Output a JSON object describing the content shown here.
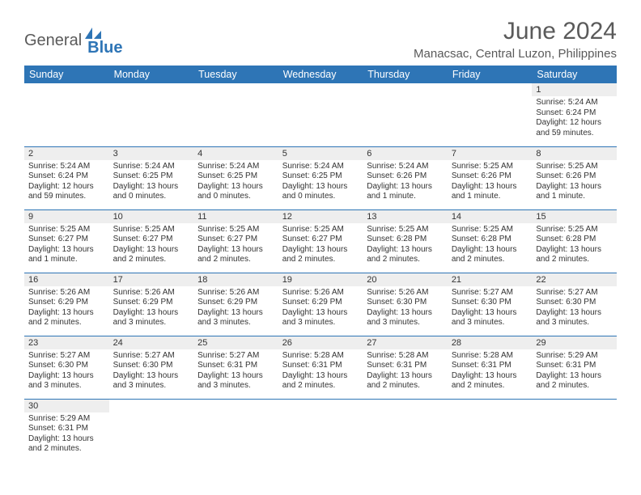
{
  "brand": {
    "part1": "General",
    "part2": "Blue"
  },
  "title": "June 2024",
  "location": "Manacsac, Central Luzon, Philippines",
  "colors": {
    "header_bg": "#2e75b6",
    "header_text": "#ffffff",
    "daynum_bg": "#eeeeee",
    "rule": "#2e75b6",
    "text": "#333333",
    "brand_gray": "#5a5a5a",
    "brand_blue": "#2e75b6"
  },
  "weekdays": [
    "Sunday",
    "Monday",
    "Tuesday",
    "Wednesday",
    "Thursday",
    "Friday",
    "Saturday"
  ],
  "weeks": [
    [
      {
        "empty": true
      },
      {
        "empty": true
      },
      {
        "empty": true
      },
      {
        "empty": true
      },
      {
        "empty": true
      },
      {
        "empty": true
      },
      {
        "n": "1",
        "sr": "5:24 AM",
        "ss": "6:24 PM",
        "dl": "12 hours and 59 minutes."
      }
    ],
    [
      {
        "n": "2",
        "sr": "5:24 AM",
        "ss": "6:24 PM",
        "dl": "12 hours and 59 minutes."
      },
      {
        "n": "3",
        "sr": "5:24 AM",
        "ss": "6:25 PM",
        "dl": "13 hours and 0 minutes."
      },
      {
        "n": "4",
        "sr": "5:24 AM",
        "ss": "6:25 PM",
        "dl": "13 hours and 0 minutes."
      },
      {
        "n": "5",
        "sr": "5:24 AM",
        "ss": "6:25 PM",
        "dl": "13 hours and 0 minutes."
      },
      {
        "n": "6",
        "sr": "5:24 AM",
        "ss": "6:26 PM",
        "dl": "13 hours and 1 minute."
      },
      {
        "n": "7",
        "sr": "5:25 AM",
        "ss": "6:26 PM",
        "dl": "13 hours and 1 minute."
      },
      {
        "n": "8",
        "sr": "5:25 AM",
        "ss": "6:26 PM",
        "dl": "13 hours and 1 minute."
      }
    ],
    [
      {
        "n": "9",
        "sr": "5:25 AM",
        "ss": "6:27 PM",
        "dl": "13 hours and 1 minute."
      },
      {
        "n": "10",
        "sr": "5:25 AM",
        "ss": "6:27 PM",
        "dl": "13 hours and 2 minutes."
      },
      {
        "n": "11",
        "sr": "5:25 AM",
        "ss": "6:27 PM",
        "dl": "13 hours and 2 minutes."
      },
      {
        "n": "12",
        "sr": "5:25 AM",
        "ss": "6:27 PM",
        "dl": "13 hours and 2 minutes."
      },
      {
        "n": "13",
        "sr": "5:25 AM",
        "ss": "6:28 PM",
        "dl": "13 hours and 2 minutes."
      },
      {
        "n": "14",
        "sr": "5:25 AM",
        "ss": "6:28 PM",
        "dl": "13 hours and 2 minutes."
      },
      {
        "n": "15",
        "sr": "5:25 AM",
        "ss": "6:28 PM",
        "dl": "13 hours and 2 minutes."
      }
    ],
    [
      {
        "n": "16",
        "sr": "5:26 AM",
        "ss": "6:29 PM",
        "dl": "13 hours and 2 minutes."
      },
      {
        "n": "17",
        "sr": "5:26 AM",
        "ss": "6:29 PM",
        "dl": "13 hours and 3 minutes."
      },
      {
        "n": "18",
        "sr": "5:26 AM",
        "ss": "6:29 PM",
        "dl": "13 hours and 3 minutes."
      },
      {
        "n": "19",
        "sr": "5:26 AM",
        "ss": "6:29 PM",
        "dl": "13 hours and 3 minutes."
      },
      {
        "n": "20",
        "sr": "5:26 AM",
        "ss": "6:30 PM",
        "dl": "13 hours and 3 minutes."
      },
      {
        "n": "21",
        "sr": "5:27 AM",
        "ss": "6:30 PM",
        "dl": "13 hours and 3 minutes."
      },
      {
        "n": "22",
        "sr": "5:27 AM",
        "ss": "6:30 PM",
        "dl": "13 hours and 3 minutes."
      }
    ],
    [
      {
        "n": "23",
        "sr": "5:27 AM",
        "ss": "6:30 PM",
        "dl": "13 hours and 3 minutes."
      },
      {
        "n": "24",
        "sr": "5:27 AM",
        "ss": "6:30 PM",
        "dl": "13 hours and 3 minutes."
      },
      {
        "n": "25",
        "sr": "5:27 AM",
        "ss": "6:31 PM",
        "dl": "13 hours and 3 minutes."
      },
      {
        "n": "26",
        "sr": "5:28 AM",
        "ss": "6:31 PM",
        "dl": "13 hours and 2 minutes."
      },
      {
        "n": "27",
        "sr": "5:28 AM",
        "ss": "6:31 PM",
        "dl": "13 hours and 2 minutes."
      },
      {
        "n": "28",
        "sr": "5:28 AM",
        "ss": "6:31 PM",
        "dl": "13 hours and 2 minutes."
      },
      {
        "n": "29",
        "sr": "5:29 AM",
        "ss": "6:31 PM",
        "dl": "13 hours and 2 minutes."
      }
    ],
    [
      {
        "n": "30",
        "sr": "5:29 AM",
        "ss": "6:31 PM",
        "dl": "13 hours and 2 minutes."
      },
      {
        "empty": true
      },
      {
        "empty": true
      },
      {
        "empty": true
      },
      {
        "empty": true
      },
      {
        "empty": true
      },
      {
        "empty": true
      }
    ]
  ],
  "labels": {
    "sunrise": "Sunrise:",
    "sunset": "Sunset:",
    "daylight": "Daylight:"
  }
}
